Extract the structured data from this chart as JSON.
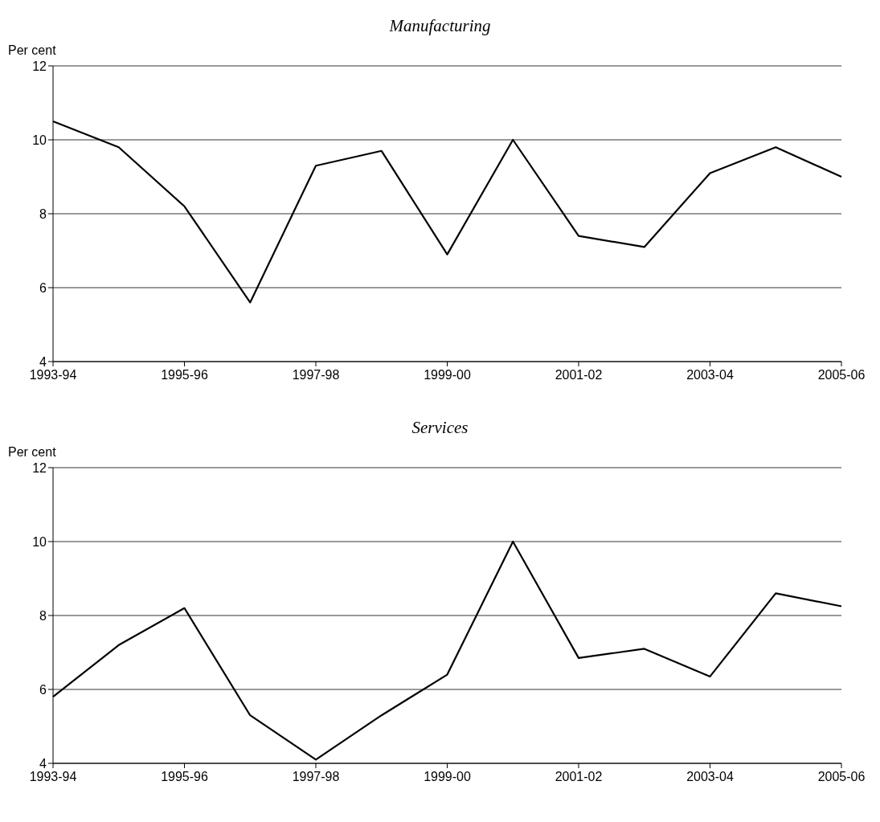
{
  "chart_data": [
    {
      "type": "line",
      "title": "Manufacturing",
      "ylabel": "Per cent",
      "categories": [
        "1993-94",
        null,
        "1995-96",
        null,
        "1997-98",
        null,
        "1999-00",
        null,
        "2001-02",
        null,
        "2003-04",
        null,
        "2005-06"
      ],
      "series": [
        {
          "color": "#000000",
          "values": [
            10.5,
            9.8,
            8.2,
            5.6,
            9.3,
            9.7,
            6.9,
            10.0,
            7.4,
            7.1,
            9.1,
            9.8,
            9.0
          ]
        }
      ],
      "ylim": [
        4,
        12
      ],
      "yticks": [
        4,
        6,
        8,
        10,
        12
      ],
      "grid": "y",
      "legend": false,
      "marker": "none",
      "line_style": "solid"
    },
    {
      "type": "line",
      "title": "Services",
      "ylabel": "Per cent",
      "categories": [
        "1993-94",
        null,
        "1995-96",
        null,
        "1997-98",
        null,
        "1999-00",
        null,
        "2001-02",
        null,
        "2003-04",
        null,
        "2005-06"
      ],
      "series": [
        {
          "color": "#000000",
          "values": [
            5.8,
            7.2,
            8.2,
            5.3,
            4.1,
            5.3,
            6.4,
            10.0,
            6.85,
            7.1,
            6.35,
            8.6,
            8.25
          ]
        }
      ],
      "ylim": [
        4,
        12
      ],
      "yticks": [
        4,
        6,
        8,
        10,
        12
      ],
      "grid": "y",
      "legend": false,
      "marker": "none",
      "line_style": "solid"
    }
  ]
}
